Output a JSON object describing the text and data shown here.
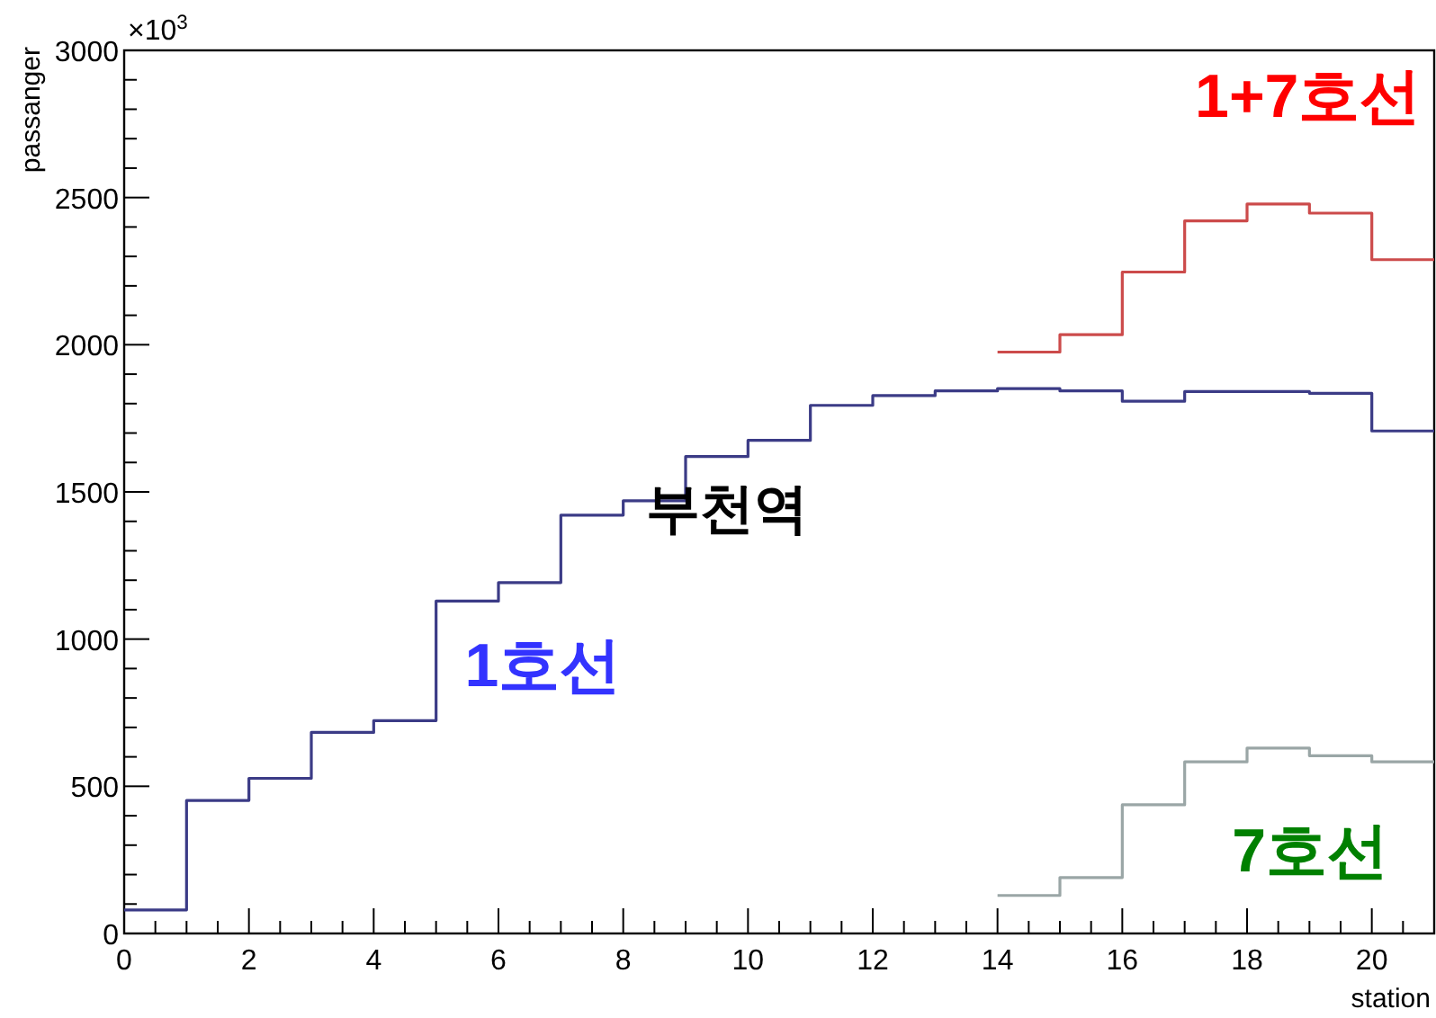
{
  "chart_data": {
    "type": "histogram",
    "xlabel": "station",
    "ylabel": "passanger",
    "annotations": [
      "×10$^{3}$",
      "부천역"
    ],
    "bins": [
      0,
      1,
      2,
      3,
      4,
      5,
      6,
      7,
      8,
      9,
      10,
      11,
      12,
      13,
      14,
      15,
      16,
      17,
      18,
      19,
      20,
      21
    ],
    "series": [
      {
        "name": "1호선",
        "color": "#3b3b86",
        "values": [
          80,
          452,
          527,
          683,
          723,
          1129,
          1192,
          1421,
          1470,
          1620,
          1675,
          1794,
          1827,
          1843,
          1851,
          1843,
          1808,
          1841,
          1841,
          1835,
          1707
        ]
      },
      {
        "name": "1+7호선",
        "color": "#cc4b4b",
        "bins": [
          14,
          15,
          16,
          17,
          18,
          19,
          20,
          21
        ],
        "values": [
          1975,
          2034,
          2247,
          2421,
          2478,
          2447,
          2289
        ]
      },
      {
        "name": "7호선",
        "color": "#9aa6a6",
        "bins": [
          14,
          15,
          16,
          17,
          18,
          19,
          20,
          21
        ],
        "values": [
          129,
          190,
          437,
          583,
          630,
          604,
          583
        ]
      }
    ],
    "xlim": [
      0,
      21
    ],
    "ylim": [
      0,
      3000
    ],
    "xticks": [
      0,
      2,
      4,
      6,
      8,
      10,
      12,
      14,
      16,
      18,
      20
    ],
    "yticks": [
      0,
      500,
      1000,
      1500,
      2000,
      2500,
      3000
    ],
    "grid": false
  }
}
